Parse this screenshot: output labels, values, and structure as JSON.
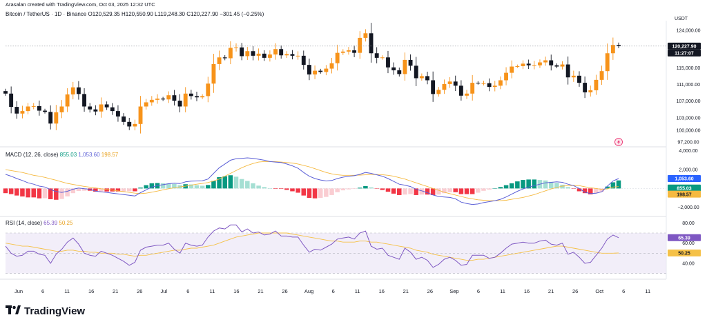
{
  "header": {
    "credit": "Arasalan created with TradingView.com, Oct 03, 2025 12:32 UTC",
    "symbol": "Bitcoin / TetherUS · 1D · Binance",
    "open": "O120,529.35",
    "high": "H120,550.90",
    "low": "L119,248.30",
    "close": "C120,227.90",
    "change": "−301.45 (−0.25%)",
    "currency": "USDT"
  },
  "price_panel": {
    "last_price": "120,227.90",
    "countdown": "11:27:07",
    "axis_ticks": [
      "124,000.00",
      "115,000.00",
      "111,000.00",
      "107,000.00",
      "103,000.00",
      "100,000.00",
      "97,200.00"
    ]
  },
  "macd_panel": {
    "title": "MACD (12, 26, close)",
    "hist_value": "855.03",
    "macd_value": "1,053.60",
    "signal_value": "198.57",
    "axis_ticks": [
      "4,000.00",
      "2,000.00",
      "−2,000.00"
    ]
  },
  "rsi_panel": {
    "title": "RSI (14, close)",
    "rsi_value": "65.39",
    "ma_value": "50.25",
    "axis_ticks": [
      "80.00",
      "60.00",
      "40.00"
    ]
  },
  "time_axis": [
    "Jun",
    "6",
    "11",
    "16",
    "21",
    "26",
    "Jul",
    "6",
    "11",
    "16",
    "21",
    "26",
    "Aug",
    "6",
    "11",
    "16",
    "21",
    "26",
    "Sep",
    "6",
    "11",
    "16",
    "21",
    "26",
    "Oct",
    "6",
    "11"
  ],
  "brand": {
    "name": "TradingView"
  },
  "colors": {
    "up": "#f7931a",
    "down": "#131722",
    "macd": "#5b5fd6",
    "signal": "#f5b940",
    "rsi": "#7e57c2",
    "rsi_ma": "#f5c147",
    "rsi_band": "#ede7f6",
    "hist_pos_strong": "#089981",
    "hist_pos_weak": "#a5dfd3",
    "hist_neg_strong": "#f23645",
    "hist_neg_weak": "#facdd2"
  },
  "chart_data": [
    {
      "type": "candlestick",
      "title": "Bitcoin / TetherUS · 1D · Binance",
      "ylim": [
        96500,
        125500
      ],
      "date_range": [
        "2025-05-28",
        "2025-10-03"
      ],
      "last_price": 120227.9,
      "axis_ticks": [
        124000,
        115000,
        111000,
        107000,
        103000,
        100000,
        97200
      ],
      "series": [
        {
          "name": "BTCUSDT",
          "close": [
            108800,
            105600,
            104000,
            104600,
            105700,
            105800,
            104700,
            104400,
            101600,
            104300,
            105700,
            108600,
            110300,
            108700,
            105700,
            105000,
            104500,
            106200,
            105500,
            104600,
            103300,
            102000,
            100900,
            101500,
            105700,
            106700,
            107300,
            107600,
            107400,
            108400,
            107100,
            105700,
            108800,
            108200,
            107900,
            108200,
            111200,
            115900,
            117500,
            117300,
            119800,
            119900,
            117800,
            119000,
            117900,
            118400,
            117400,
            118200,
            119500,
            118000,
            118300,
            117900,
            117900,
            115700,
            113400,
            114300,
            114000,
            114800,
            116100,
            118600,
            118900,
            119200,
            118600,
            122200,
            123300,
            118500,
            117400,
            117500,
            115100,
            114400,
            113500,
            116900,
            115500,
            112500,
            113000,
            112000,
            108700,
            109700,
            111100,
            111700,
            110700,
            108300,
            108800,
            111400,
            111300,
            111300,
            110400,
            110700,
            112000,
            113800,
            115300,
            115400,
            116000,
            115600,
            115600,
            116300,
            116800,
            115600,
            115300,
            115800,
            112700,
            113100,
            111400,
            109100,
            109600,
            112100,
            114200,
            118500,
            120500,
            120227.9
          ]
        }
      ]
    },
    {
      "type": "line+bar",
      "title": "MACD (12, 26, close)",
      "ylim": [
        -2900,
        4200
      ],
      "axis_ticks": [
        4000,
        2000,
        -2000
      ],
      "last": {
        "histogram": 855.03,
        "macd": 1053.6,
        "signal": 198.57
      },
      "series": [
        {
          "name": "MACD",
          "values": [
            1500,
            1300,
            1050,
            850,
            600,
            450,
            250,
            150,
            -120,
            -320,
            -420,
            -300,
            -80,
            50,
            -20,
            -100,
            -280,
            -350,
            -420,
            -500,
            -580,
            -650,
            -720,
            -800,
            -450,
            -150,
            150,
            300,
            400,
            500,
            560,
            520,
            700,
            780,
            800,
            820,
            1000,
            1600,
            2200,
            2600,
            3000,
            3150,
            3200,
            3250,
            3200,
            3100,
            3000,
            2850,
            2800,
            2750,
            2600,
            2400,
            2150,
            1700,
            1300,
            1050,
            900,
            800,
            850,
            1050,
            1200,
            1300,
            1350,
            1500,
            1700,
            1600,
            1450,
            1300,
            1050,
            750,
            450,
            350,
            200,
            -100,
            -250,
            -450,
            -700,
            -850,
            -900,
            -950,
            -1100,
            -1450,
            -1600,
            -1700,
            -1650,
            -1500,
            -1400,
            -1300,
            -1150,
            -900,
            -600,
            -300,
            -50,
            150,
            300,
            450,
            600,
            650,
            700,
            650,
            450,
            300,
            0,
            -400,
            -550,
            -500,
            -350,
            250,
            800,
            1053.6
          ]
        },
        {
          "name": "Signal",
          "values": [
            2000,
            1900,
            1800,
            1700,
            1550,
            1400,
            1300,
            1180,
            1020,
            880,
            700,
            540,
            420,
            320,
            220,
            140,
            60,
            -30,
            -100,
            -180,
            -260,
            -340,
            -420,
            -500,
            -540,
            -500,
            -400,
            -280,
            -150,
            -30,
            80,
            170,
            250,
            350,
            450,
            530,
            630,
            800,
            1000,
            1300,
            1600,
            1900,
            2200,
            2450,
            2650,
            2800,
            2850,
            2850,
            2850,
            2800,
            2750,
            2700,
            2600,
            2450,
            2300,
            2100,
            1900,
            1700,
            1550,
            1450,
            1400,
            1400,
            1400,
            1420,
            1450,
            1480,
            1480,
            1460,
            1400,
            1300,
            1150,
            1000,
            800,
            600,
            400,
            200,
            0,
            -200,
            -400,
            -550,
            -700,
            -850,
            -1000,
            -1100,
            -1200,
            -1250,
            -1280,
            -1300,
            -1300,
            -1250,
            -1150,
            -1050,
            -950,
            -800,
            -650,
            -450,
            -250,
            -50,
            100,
            250,
            300,
            320,
            300,
            180,
            80,
            0,
            -100,
            -50,
            150,
            198.57
          ]
        },
        {
          "name": "Histogram",
          "values": [
            -500,
            -600,
            -750,
            -850,
            -950,
            -950,
            -1050,
            -1030,
            -1140,
            -1200,
            -1120,
            -840,
            -500,
            -270,
            -240,
            -240,
            -340,
            -320,
            -320,
            -320,
            -320,
            -310,
            -300,
            -300,
            90,
            350,
            550,
            580,
            550,
            530,
            480,
            350,
            450,
            430,
            350,
            290,
            370,
            800,
            1200,
            1300,
            1400,
            1250,
            1000,
            800,
            550,
            300,
            150,
            0,
            -50,
            -50,
            -150,
            -300,
            -450,
            -750,
            -1000,
            -1050,
            -1000,
            -900,
            -700,
            -400,
            -200,
            -100,
            -50,
            80,
            250,
            120,
            -30,
            -160,
            -350,
            -550,
            -700,
            -650,
            -600,
            -700,
            -650,
            -650,
            -700,
            -650,
            -500,
            -400,
            -400,
            -600,
            -600,
            -600,
            -450,
            -250,
            -120,
            0,
            150,
            350,
            550,
            750,
            900,
            950,
            950,
            900,
            850,
            700,
            600,
            400,
            150,
            -20,
            -300,
            -500,
            -630,
            -500,
            -350,
            200,
            650,
            855.03
          ]
        }
      ]
    },
    {
      "type": "line",
      "title": "RSI (14, close)",
      "ylim": [
        25,
        85
      ],
      "axis_ticks": [
        80,
        60,
        40
      ],
      "last": {
        "rsi": 65.39,
        "rsi_ma": 50.25
      },
      "series": [
        {
          "name": "RSI",
          "values": [
            57,
            50,
            47,
            48,
            52,
            52,
            49,
            48,
            40,
            49,
            54,
            61,
            65,
            59,
            50,
            48,
            47,
            52,
            50,
            48,
            45,
            42,
            38,
            41,
            53,
            56,
            57,
            58,
            58,
            60,
            54,
            50,
            60,
            58,
            57,
            58,
            66,
            72,
            75,
            74,
            78,
            78,
            71,
            74,
            70,
            71,
            68,
            69,
            72,
            67,
            67,
            66,
            66,
            58,
            51,
            54,
            53,
            56,
            59,
            64,
            65,
            66,
            64,
            70,
            72,
            57,
            54,
            55,
            48,
            46,
            44,
            55,
            51,
            44,
            46,
            43,
            36,
            39,
            44,
            46,
            43,
            38,
            39,
            48,
            48,
            48,
            45,
            46,
            50,
            55,
            59,
            60,
            61,
            60,
            60,
            62,
            63,
            59,
            58,
            60,
            49,
            51,
            46,
            40,
            41,
            48,
            55,
            64,
            68,
            65.39
          ]
        },
        {
          "name": "RSI MA",
          "values": [
            60,
            59,
            58,
            57,
            57,
            56,
            55,
            54,
            53,
            52,
            52,
            53,
            53,
            52,
            52,
            51,
            51,
            50,
            50,
            50,
            49,
            49,
            48,
            47,
            48,
            48,
            49,
            50,
            51,
            52,
            53,
            53,
            54,
            55,
            55,
            56,
            57,
            58,
            60,
            62,
            64,
            66,
            67,
            68,
            69,
            70,
            70,
            70,
            70,
            70,
            70,
            69,
            68,
            67,
            66,
            65,
            64,
            63,
            62,
            62,
            61,
            61,
            61,
            62,
            62,
            61,
            61,
            60,
            59,
            58,
            57,
            56,
            55,
            53,
            52,
            51,
            49,
            48,
            47,
            46,
            45,
            44,
            43,
            43,
            44,
            44,
            45,
            46,
            47,
            48,
            49,
            50,
            51,
            52,
            53,
            54,
            55,
            56,
            57,
            57,
            56,
            55,
            54,
            53,
            52,
            51,
            50,
            50,
            50,
            50.25
          ]
        }
      ]
    }
  ]
}
